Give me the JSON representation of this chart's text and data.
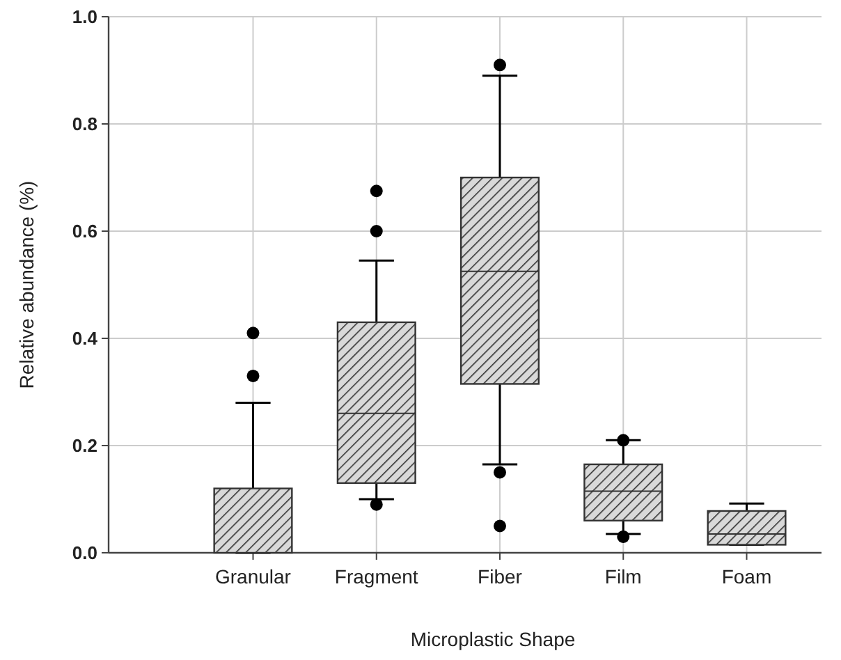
{
  "chart_data": {
    "type": "box",
    "xlabel": "Microplastic Shape",
    "ylabel": "Relative abundance (%)",
    "categories": [
      "Granular",
      "Fragment",
      "Fiber",
      "Film",
      "Foam"
    ],
    "boxes": [
      {
        "low": 0,
        "q1": 0,
        "median": 0,
        "q3": 0.12,
        "high": 0.28,
        "outliers": [
          0.33,
          0.41
        ]
      },
      {
        "low": 0.1,
        "q1": 0.13,
        "median": 0.26,
        "q3": 0.43,
        "high": 0.545,
        "outliers": [
          0.09,
          0.6,
          0.675
        ]
      },
      {
        "low": 0.165,
        "q1": 0.315,
        "median": 0.525,
        "q3": 0.7,
        "high": 0.89,
        "outliers": [
          0.05,
          0.15,
          0.91
        ]
      },
      {
        "low": 0.035,
        "q1": 0.06,
        "median": 0.115,
        "q3": 0.165,
        "high": 0.21,
        "outliers": [
          0.03,
          0.21
        ]
      },
      {
        "low": 0.015,
        "q1": 0.015,
        "median": 0.035,
        "q3": 0.078,
        "high": 0.092
      }
    ],
    "color": "#333333",
    "ylim": [
      0,
      1
    ],
    "yticks": [
      {
        "value": 0,
        "label": "0.0"
      },
      0.2,
      0.4,
      0.6,
      0.8,
      {
        "value": 1,
        "label": "1.0"
      }
    ],
    "grid": true
  }
}
